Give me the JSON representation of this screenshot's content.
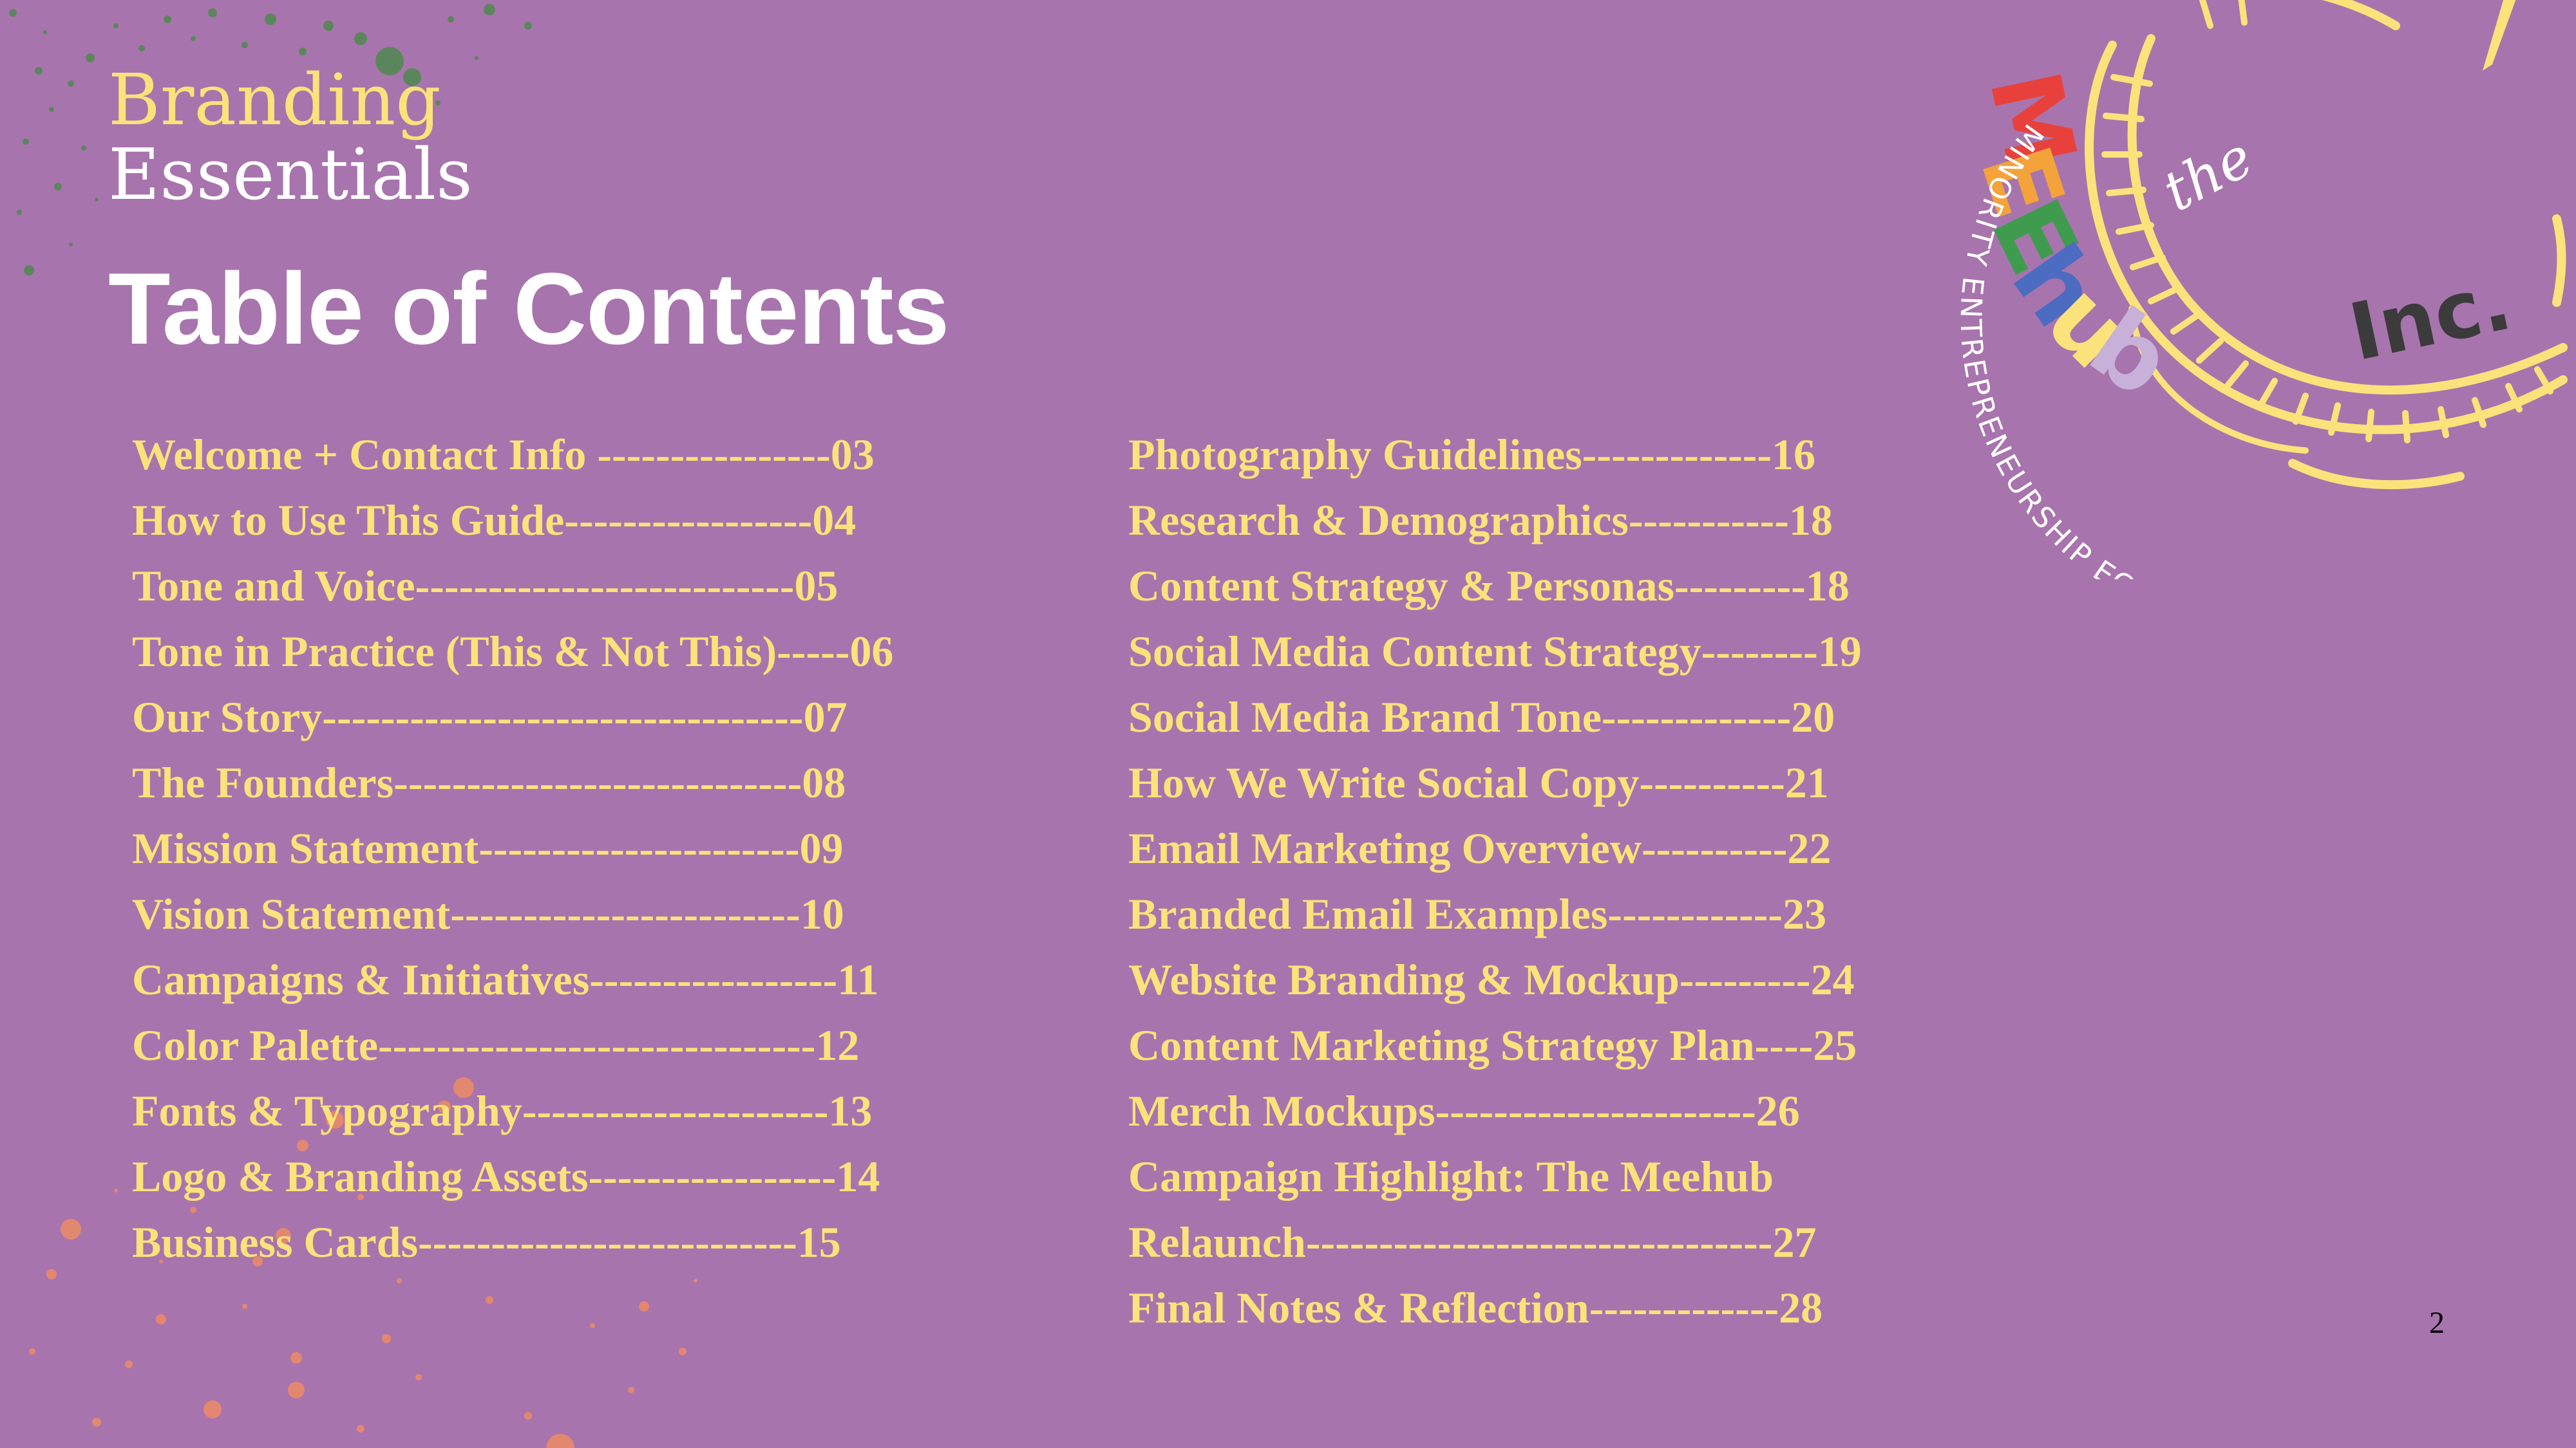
{
  "header": {
    "brand_line1": "Branding",
    "brand_line2": "Essentials",
    "title": "Table of Contents"
  },
  "toc": {
    "left": [
      "Welcome + Contact Info ----------------03",
      "How to Use This Guide-----------------04",
      "Tone and Voice--------------------------05",
      "Tone in Practice (This & Not This)-----06",
      "Our Story---------------------------------07",
      "The Founders----------------------------08",
      "Mission Statement----------------------09",
      "Vision Statement------------------------10",
      "Campaigns & Initiatives-----------------11",
      "Color Palette------------------------------12",
      "Fonts & Typography---------------------13",
      "Logo & Branding Assets-----------------14",
      "Business Cards--------------------------15"
    ],
    "right": [
      "Photography Guidelines-------------16",
      "Research & Demographics-----------18",
      "Content Strategy & Personas---------18",
      "Social Media Content Strategy--------19",
      "Social Media Brand Tone-------------20",
      "How We Write Social Copy----------21",
      "Email Marketing Overview----------22",
      "Branded Email Examples------------23",
      "Website Branding & Mockup---------24",
      "Content Marketing Strategy Plan----25",
      "Merch Mockups----------------------26",
      "Campaign Highlight: The Meehub",
      "Relaunch--------------------------------27",
      "Final Notes & Reflection-------------28"
    ]
  },
  "page_number": "2",
  "logo": {
    "the": "the",
    "letters": [
      "M",
      "E",
      "E",
      "h",
      "u",
      "b"
    ],
    "letter_colors": [
      "#e8413c",
      "#f3a33a",
      "#3f9c4f",
      "#4b6cc1",
      "#fbe27a",
      "#c7b1d8"
    ],
    "inc": "Inc.",
    "tagline": "MINORITY ENTREPRENEURSHIP ECOSYSTEM"
  },
  "colors": {
    "background": "#a874ad",
    "accent_yellow": "#fbe27a",
    "white": "#ffffff",
    "splatter_green": "#4e8a4e",
    "splatter_orange": "#e98a6a"
  }
}
